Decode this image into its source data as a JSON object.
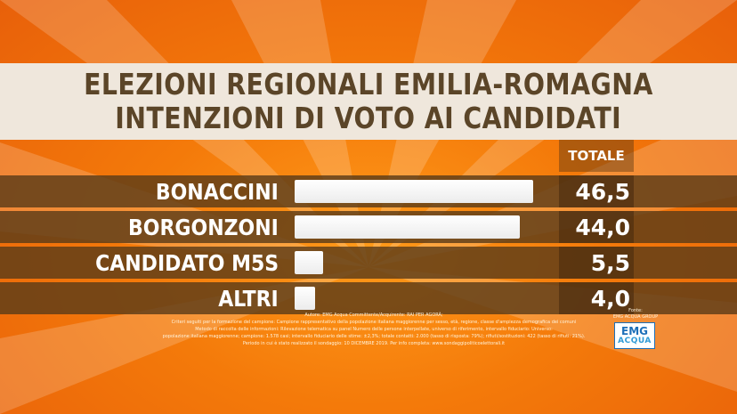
{
  "colors": {
    "background": "#f47a0a",
    "title_band": "#efe7dc",
    "title_text": "#5b4528",
    "row_band": "#5c3c18",
    "bar": "#ffffff",
    "logo_blue": "#1d6fb8"
  },
  "chart_data": {
    "type": "bar",
    "orientation": "horizontal",
    "title": "ELEZIONI REGIONALI EMILIA-ROMAGNA",
    "subtitle": "INTENZIONI DI VOTO AI CANDIDATI",
    "value_column_header": "TOTALE",
    "categories": [
      "BONACCINI",
      "BORGONZONI",
      "CANDIDATO M5S",
      "ALTRI"
    ],
    "values": [
      46.5,
      44.0,
      5.5,
      4.0
    ],
    "value_labels": [
      "46,5",
      "44,0",
      "5,5",
      "4,0"
    ],
    "xlim": [
      0,
      50
    ],
    "grid": false,
    "legend": "none"
  },
  "notes": [
    "Autore: EMG Acqua Committente/Acquirente: RAI PER AGORÀ;",
    "Criteri seguiti per la formazione del campione: Campione rappresentativo della popolazione italiana maggiorenne per sesso, età, regione, classe d'ampiezza demografica dei comuni",
    "Metodo di raccolta delle informazioni: Rilevazione telematica su panel Numero delle persone interpellate, universo di riferimento, intervallo fiduciario: Universo:",
    "popolazione italiana maggiorenne; campione: 1.578 casi; intervallo fiduciario delle stime: ±2,3%; totale contatti: 2.000 (tasso di risposta: 79%); rifiuti/sostituzioni: 422 (tasso di rifiuti: 21%).",
    "Periodo in cui è stato realizzato il sondaggio: 10 DICEMBRE 2019. Per info completa: www.sondaggipoliticoelettorali.it"
  ],
  "source": {
    "line1": "Fonte:",
    "line2": "EMG ACQUA GROUP",
    "logo_top": "EMG",
    "logo_bottom": "ACQUA"
  }
}
